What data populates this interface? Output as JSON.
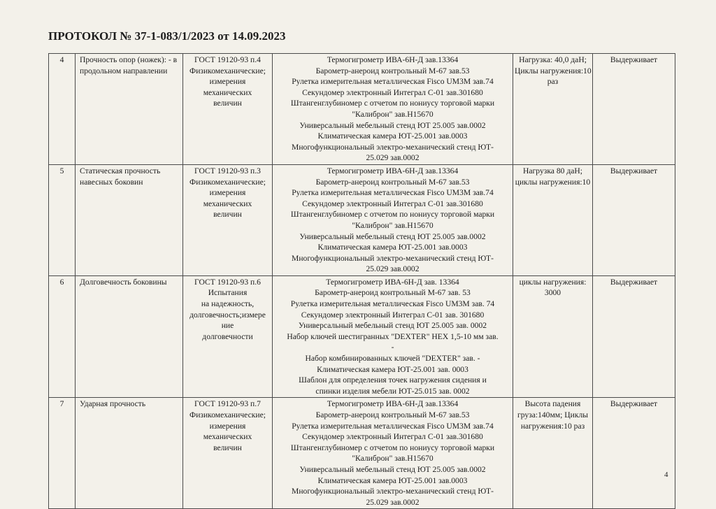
{
  "title": "ПРОТОКОЛ № 37-1-083/1/2023 от 14.09.2023",
  "rows": [
    {
      "num": "4",
      "name": [
        "Прочность опор (ножек): - в",
        "продольном направлении"
      ],
      "method": [
        "ГОСТ 19120-93 п.4",
        "Физикомеханические;",
        "измерения",
        "механических",
        "величин"
      ],
      "equipment": [
        "Термогигрометр ИВА-6Н-Д зав.13364",
        "Барометр-анероид контрольный М-67 зав.53",
        "Рулетка измерительная металлическая Fisco UM3M зав.74",
        "Секундомер электронный Интеграл С-01 зав.301680",
        "Штангенглубиномер с отчетом по нониусу торговой марки",
        "\"Калиброн\" зав.Н15670",
        "Универсальный мебельный стенд ЮТ 25.005 зав.0002",
        "Климатическая камера ЮТ-25.001 зав.0003",
        "Многофункциональный электро-механический стенд ЮТ-",
        "25.029 зав.0002"
      ],
      "params": [
        "Нагрузка: 40,0 даН;",
        "Циклы нагружения:10",
        "раз"
      ],
      "result": "Выдерживает"
    },
    {
      "num": "5",
      "name": [
        "Статическая прочность",
        "навесных боковин"
      ],
      "method": [
        "ГОСТ 19120-93 п.3",
        "Физикомеханические;",
        "измерения",
        "механических",
        "величин"
      ],
      "equipment": [
        "Термогигрометр ИВА-6Н-Д зав.13364",
        "Барометр-анероид контрольный М-67 зав.53",
        "Рулетка измерительная металлическая Fisco UM3M зав.74",
        "Секундомер электронный Интеграл С-01  зав.301680",
        "Штангенглубиномер с отчетом по нониусу торговой марки",
        "\"Калиброн\" зав.Н15670",
        "Универсальный мебельный стенд ЮТ 25.005 зав.0002",
        "Климатическая камера ЮТ-25.001 зав.0003",
        "Многофункциональный электро-механический стенд ЮТ-",
        "25.029 зав.0002"
      ],
      "params": [
        "Нагрузка 80 даН;",
        "циклы нагружения:10"
      ],
      "result": "Выдерживает"
    },
    {
      "num": "6",
      "name": [
        "Долговечность боковины"
      ],
      "method": [
        "ГОСТ 19120-93 п.6",
        "Испытания",
        "на надежность,",
        "долговечность;измере",
        "ние",
        "долговечности"
      ],
      "equipment": [
        "Термогигрометр ИВА-6Н-Д зав.  13364",
        "Барометр-анероид контрольный М-67 зав.  53",
        "Рулетка измерительная металлическая Fisco UM3M зав.  74",
        "Секундомер электронный Интеграл С-01 зав.  301680",
        "Универсальный мебельный стенд ЮТ 25.005 зав.  0002",
        "Набор ключей шестигранных \"DEXTER\" HEX 1,5-10 мм зав.",
        "-",
        "Набор комбинированных ключей \"DEXTER\" зав.  -",
        "Климатическая камера ЮТ-25.001 зав.  0003",
        "Шаблон для определения точек нагружения сидения и",
        "спинки изделия мебели ЮТ-25.015 зав.  0002"
      ],
      "params": [
        "циклы нагружения:",
        "3000"
      ],
      "result": "Выдерживает"
    },
    {
      "num": "7",
      "name": [
        "Ударная прочность"
      ],
      "method": [
        "ГОСТ 19120-93 п.7",
        "Физикомеханические;",
        "измерения",
        "механических",
        "величин"
      ],
      "equipment": [
        "Термогигрометр ИВА-6Н-Д зав.13364",
        "Барометр-анероид контрольный М-67 зав.53",
        "Рулетка измерительная металлическая Fisco UM3M зав.74",
        "Секундомер электронный Интеграл С-01 зав.301680",
        "Штангенглубиномер с отчетом по нониусу торговой марки",
        "\"Калиброн\" зав.Н15670",
        "Универсальный мебельный стенд ЮТ 25.005 зав.0002",
        "Климатическая камера ЮТ-25.001 зав.0003",
        "Многофункциональный электро-механический стенд ЮТ-",
        "25.029 зав.0002"
      ],
      "params": [
        "Высота падения",
        "груза:140мм; Циклы",
        "нагружения:10 раз"
      ],
      "result": "Выдерживает"
    }
  ],
  "page_number": "4"
}
